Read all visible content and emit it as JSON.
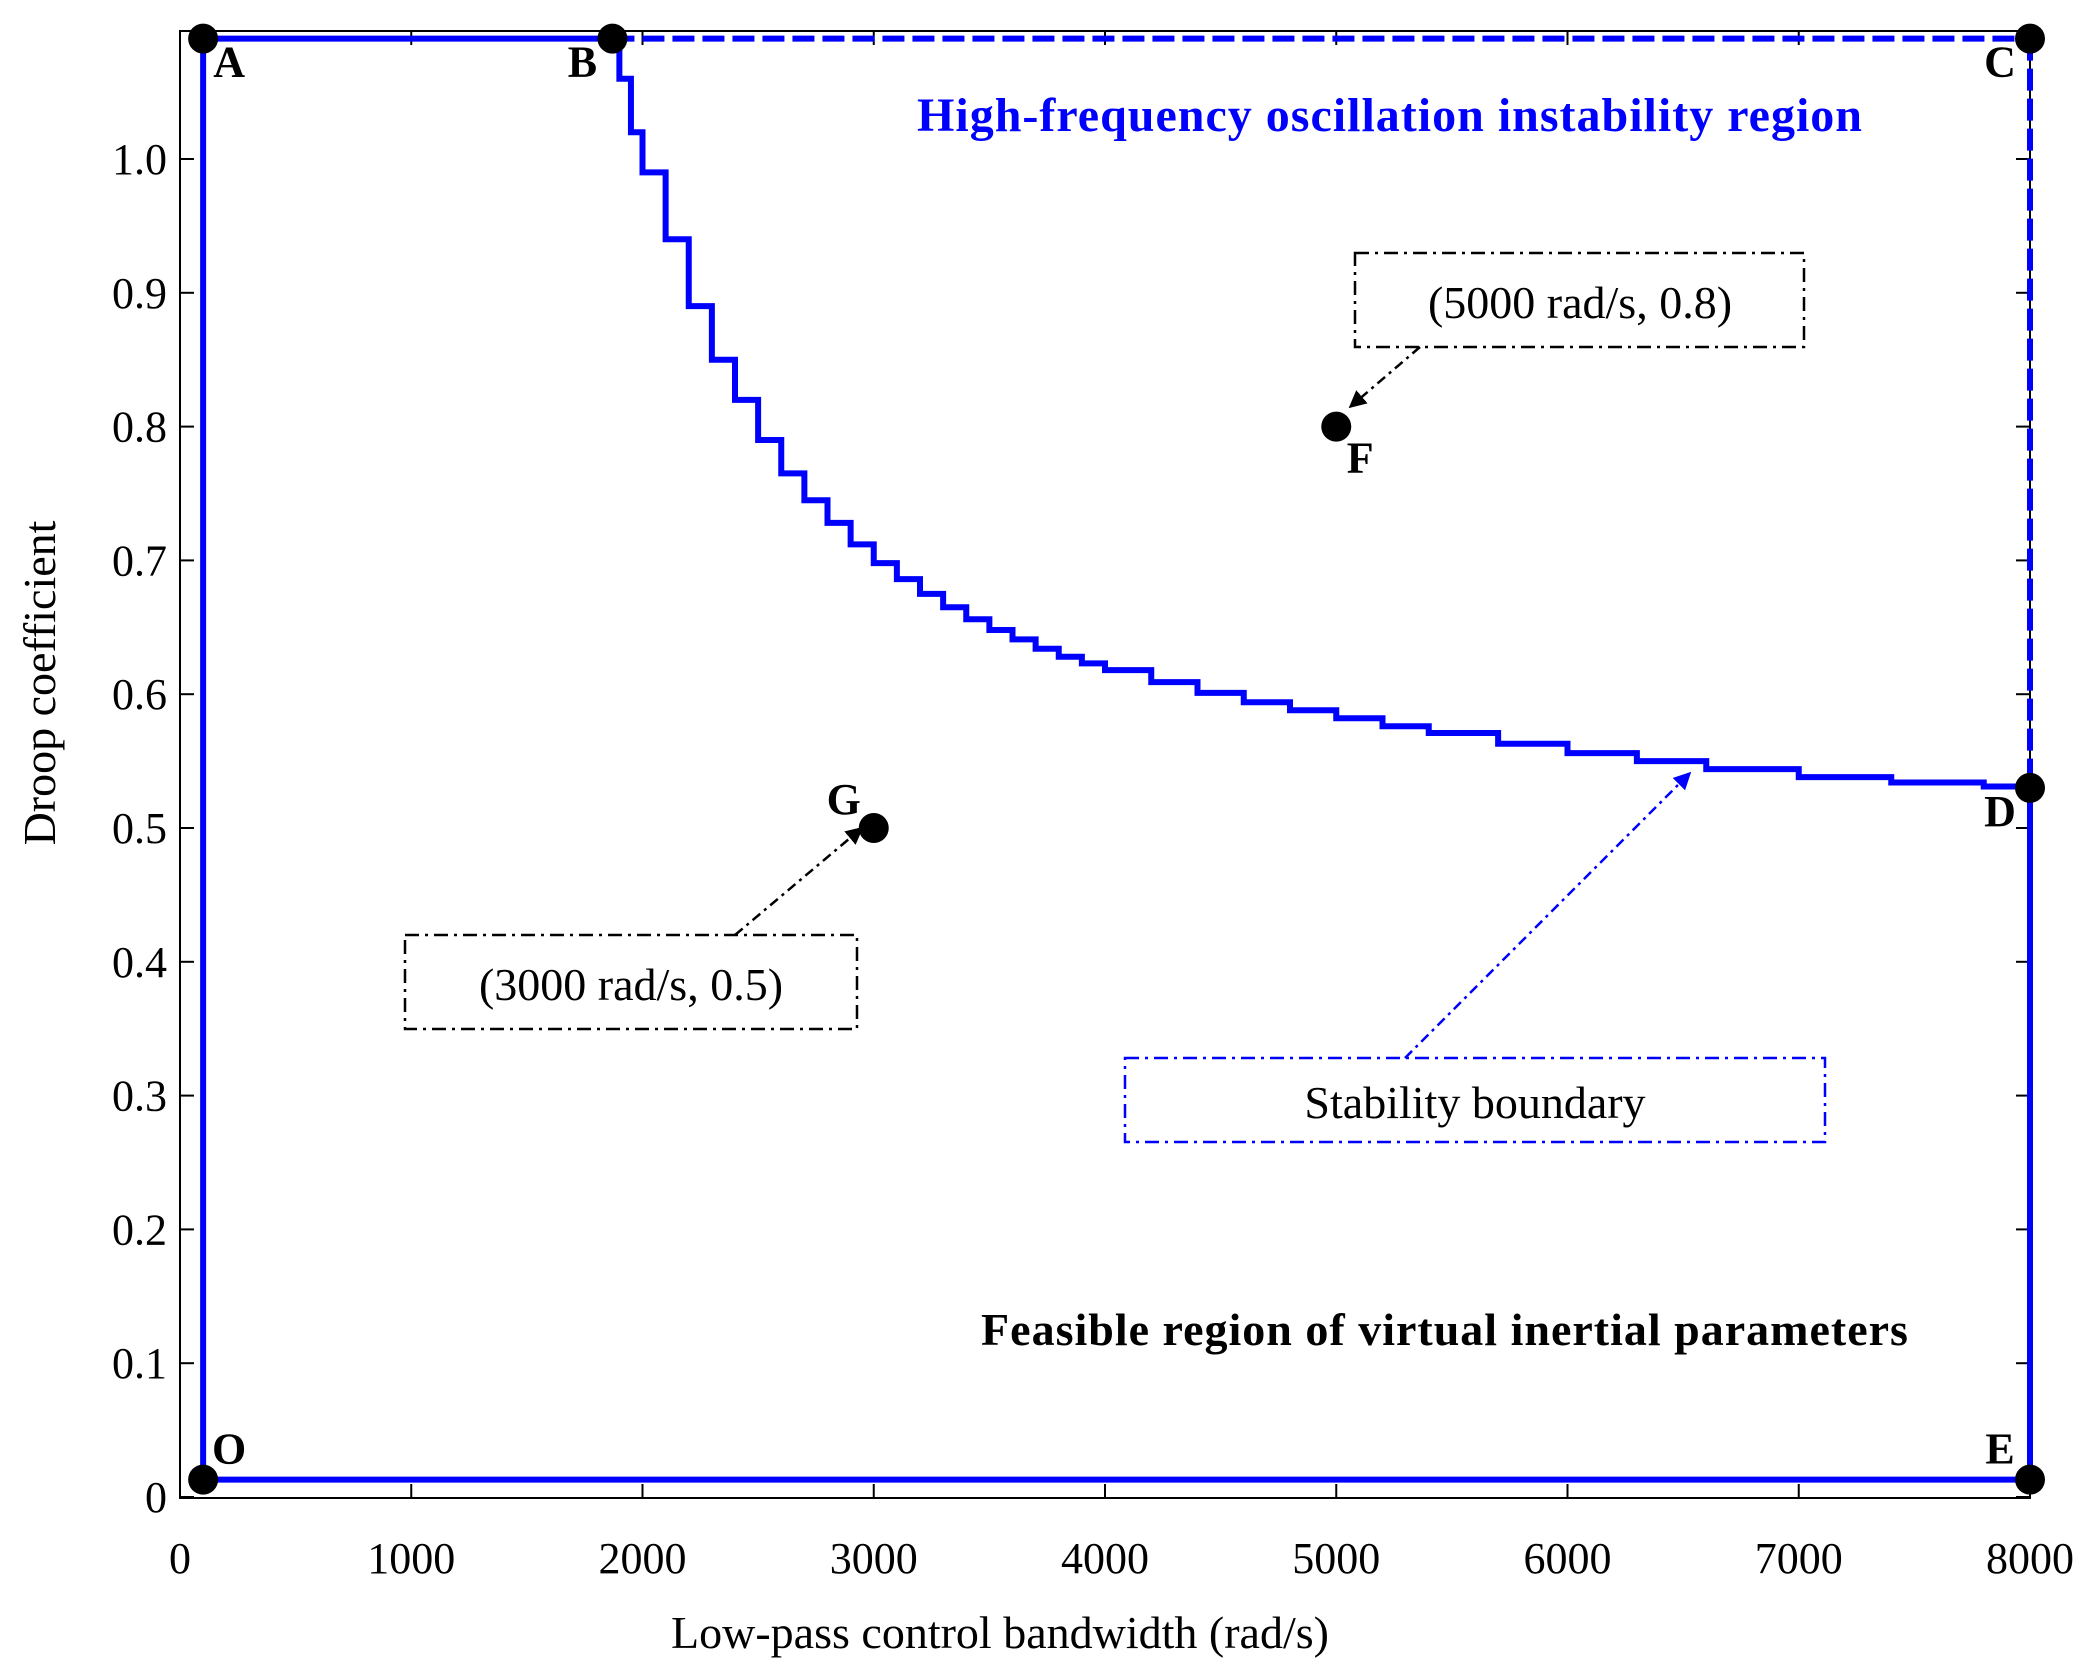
{
  "chart_data": {
    "type": "line",
    "title": "",
    "xlabel": "Low-pass control bandwidth (rad/s)",
    "ylabel": "Droop coefficient",
    "xlim": [
      0,
      8000
    ],
    "ylim": [
      0,
      1.1
    ],
    "x_ticks": [
      0,
      1000,
      2000,
      3000,
      4000,
      5000,
      6000,
      7000,
      8000
    ],
    "x_tick_labels": [
      "0",
      "1000",
      "2000",
      "3000",
      "4000",
      "5000",
      "6000",
      "7000",
      "8000"
    ],
    "y_ticks": [
      0,
      0.1,
      0.2,
      0.3,
      0.4,
      0.5,
      0.6,
      0.7,
      0.8,
      0.9,
      1.0
    ],
    "y_tick_labels": [
      "0",
      "0.1",
      "0.2",
      "0.3",
      "0.4",
      "0.5",
      "0.6",
      "0.7",
      "0.8",
      "0.9",
      "1.0"
    ],
    "grid": false,
    "color_boundary": "#0000ff",
    "color_points": "#000000",
    "points": [
      {
        "label": "A",
        "x": 100,
        "y": 1.09
      },
      {
        "label": "B",
        "x": 1870,
        "y": 1.09
      },
      {
        "label": "C",
        "x": 8000,
        "y": 1.09
      },
      {
        "label": "D",
        "x": 8000,
        "y": 0.53
      },
      {
        "label": "E",
        "x": 8000,
        "y": 0.013
      },
      {
        "label": "O",
        "x": 100,
        "y": 0.013
      },
      {
        "label": "F",
        "x": 5000,
        "y": 0.8
      },
      {
        "label": "G",
        "x": 3000,
        "y": 0.5
      }
    ],
    "stability_boundary": {
      "x": [
        1870,
        1900,
        1950,
        2000,
        2100,
        2200,
        2300,
        2400,
        2500,
        2600,
        2700,
        2800,
        2900,
        3000,
        3100,
        3200,
        3300,
        3400,
        3500,
        3600,
        3700,
        3800,
        3900,
        4000,
        4200,
        4400,
        4600,
        4800,
        5000,
        5200,
        5400,
        5700,
        6000,
        6300,
        6600,
        7000,
        7400,
        7800,
        8000
      ],
      "y": [
        1.09,
        1.06,
        1.02,
        0.99,
        0.94,
        0.89,
        0.85,
        0.82,
        0.79,
        0.765,
        0.745,
        0.728,
        0.712,
        0.698,
        0.686,
        0.675,
        0.665,
        0.656,
        0.648,
        0.641,
        0.634,
        0.628,
        0.623,
        0.618,
        0.609,
        0.601,
        0.594,
        0.588,
        0.582,
        0.576,
        0.571,
        0.563,
        0.556,
        0.55,
        0.544,
        0.538,
        0.534,
        0.531,
        0.53
      ]
    },
    "region_labels": {
      "unstable": "High-frequency oscillation instability region",
      "feasible": "Feasible region of virtual inertial parameters"
    },
    "annotations": [
      {
        "text": "(5000 rad/s, 0.8)",
        "target": "F"
      },
      {
        "text": "(3000 rad/s, 0.5)",
        "target": "G"
      },
      {
        "text": "Stability boundary",
        "target": "curve"
      }
    ]
  }
}
